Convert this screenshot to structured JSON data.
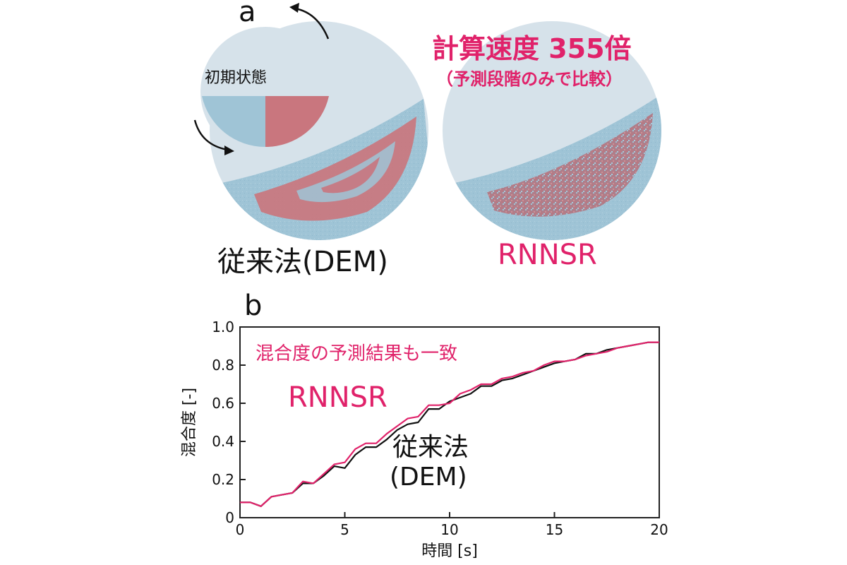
{
  "panel_a": {
    "label": "a",
    "initial_state_label": "初期状態",
    "dem_caption": "従来法(DEM)",
    "rnnsr_caption": "RNNSR",
    "speed_title": "計算速度 355倍",
    "speed_subtitle": "（予測段階のみで比較）"
  },
  "panel_b": {
    "label": "b",
    "annotation_agree": "混合度の予測結果も一致",
    "annotation_rnnsr": "RNNSR",
    "annotation_dem_line1": "従来法",
    "annotation_dem_line2": "(DEM)"
  },
  "colors": {
    "pink": "#e0226a",
    "black": "#111111",
    "drum_bg": "#d6e2ea",
    "particle_blue": "#9fc4d6",
    "particle_red": "#c9767e"
  },
  "chart_data": {
    "type": "line",
    "xlabel": "時間 [s]",
    "ylabel": "混合度 [-]",
    "xlim": [
      0,
      20
    ],
    "ylim": [
      0,
      1.0
    ],
    "xticks": [
      "0",
      "5",
      "10",
      "15",
      "20"
    ],
    "yticks": [
      "0",
      "0.2",
      "0.4",
      "0.6",
      "0.8",
      "1.0"
    ],
    "x": [
      0,
      0.5,
      1,
      1.5,
      2,
      2.5,
      3,
      3.5,
      4,
      4.5,
      5,
      5.5,
      6,
      6.5,
      7,
      7.5,
      8,
      8.5,
      9,
      9.5,
      10,
      10.5,
      11,
      11.5,
      12,
      12.5,
      13,
      13.5,
      14,
      14.5,
      15,
      15.5,
      16,
      16.5,
      17,
      17.5,
      18,
      18.5,
      19,
      19.5,
      20
    ],
    "series": [
      {
        "name": "RNNSR",
        "color": "#e0226a",
        "values": [
          0.08,
          0.08,
          0.06,
          0.11,
          0.12,
          0.13,
          0.19,
          0.18,
          0.23,
          0.28,
          0.29,
          0.36,
          0.39,
          0.39,
          0.44,
          0.48,
          0.52,
          0.53,
          0.59,
          0.59,
          0.6,
          0.65,
          0.67,
          0.7,
          0.7,
          0.73,
          0.74,
          0.76,
          0.77,
          0.8,
          0.82,
          0.82,
          0.83,
          0.85,
          0.86,
          0.87,
          0.89,
          0.9,
          0.91,
          0.92,
          0.92
        ]
      },
      {
        "name": "従来法 (DEM)",
        "color": "#111111",
        "values": [
          0.08,
          0.08,
          0.06,
          0.11,
          0.12,
          0.13,
          0.18,
          0.18,
          0.22,
          0.27,
          0.26,
          0.33,
          0.37,
          0.37,
          0.41,
          0.46,
          0.49,
          0.5,
          0.57,
          0.57,
          0.61,
          0.63,
          0.65,
          0.69,
          0.69,
          0.72,
          0.73,
          0.75,
          0.77,
          0.79,
          0.81,
          0.82,
          0.83,
          0.86,
          0.86,
          0.88,
          0.89,
          0.9,
          0.91,
          0.92,
          0.92
        ]
      }
    ]
  }
}
